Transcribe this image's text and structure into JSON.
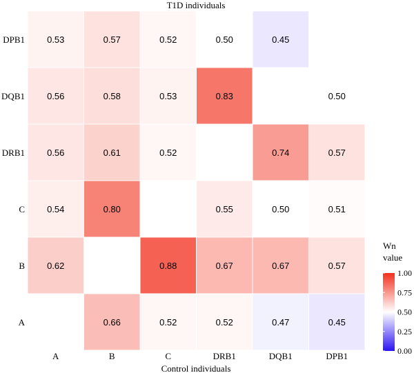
{
  "chart_data": {
    "type": "heatmap",
    "title": "T1D individuals",
    "xlabel": "Control individuals",
    "ylabel": "",
    "x_categories": [
      "A",
      "B",
      "C",
      "DRB1",
      "DQB1",
      "DPB1"
    ],
    "y_categories": [
      "A",
      "B",
      "C",
      "DRB1",
      "DQB1",
      "DPB1"
    ],
    "cells": [
      {
        "x": "A",
        "y": "DPB1",
        "value": 0.53,
        "label": "0.53"
      },
      {
        "x": "B",
        "y": "DPB1",
        "value": 0.57,
        "label": "0.57"
      },
      {
        "x": "C",
        "y": "DPB1",
        "value": 0.52,
        "label": "0.52"
      },
      {
        "x": "DRB1",
        "y": "DPB1",
        "value": 0.5,
        "label": "0.50"
      },
      {
        "x": "DQB1",
        "y": "DPB1",
        "value": 0.45,
        "label": "0.45"
      },
      {
        "x": "A",
        "y": "DQB1",
        "value": 0.56,
        "label": "0.56"
      },
      {
        "x": "B",
        "y": "DQB1",
        "value": 0.58,
        "label": "0.58"
      },
      {
        "x": "C",
        "y": "DQB1",
        "value": 0.53,
        "label": "0.53"
      },
      {
        "x": "DRB1",
        "y": "DQB1",
        "value": 0.83,
        "label": "0.83"
      },
      {
        "x": "DPB1",
        "y": "DQB1",
        "value": 0.5,
        "label": "0.50"
      },
      {
        "x": "A",
        "y": "DRB1",
        "value": 0.56,
        "label": "0.56"
      },
      {
        "x": "B",
        "y": "DRB1",
        "value": 0.61,
        "label": "0.61"
      },
      {
        "x": "C",
        "y": "DRB1",
        "value": 0.52,
        "label": "0.52"
      },
      {
        "x": "DQB1",
        "y": "DRB1",
        "value": 0.74,
        "label": "0.74"
      },
      {
        "x": "DPB1",
        "y": "DRB1",
        "value": 0.57,
        "label": "0.57"
      },
      {
        "x": "A",
        "y": "C",
        "value": 0.54,
        "label": "0.54"
      },
      {
        "x": "B",
        "y": "C",
        "value": 0.8,
        "label": "0.80"
      },
      {
        "x": "DRB1",
        "y": "C",
        "value": 0.55,
        "label": "0.55"
      },
      {
        "x": "DQB1",
        "y": "C",
        "value": 0.5,
        "label": "0.50"
      },
      {
        "x": "DPB1",
        "y": "C",
        "value": 0.51,
        "label": "0.51"
      },
      {
        "x": "A",
        "y": "B",
        "value": 0.62,
        "label": "0.62"
      },
      {
        "x": "C",
        "y": "B",
        "value": 0.88,
        "label": "0.88"
      },
      {
        "x": "DRB1",
        "y": "B",
        "value": 0.67,
        "label": "0.67"
      },
      {
        "x": "DQB1",
        "y": "B",
        "value": 0.67,
        "label": "0.67"
      },
      {
        "x": "DPB1",
        "y": "B",
        "value": 0.57,
        "label": "0.57"
      },
      {
        "x": "B",
        "y": "A",
        "value": 0.66,
        "label": "0.66"
      },
      {
        "x": "C",
        "y": "A",
        "value": 0.52,
        "label": "0.52"
      },
      {
        "x": "DRB1",
        "y": "A",
        "value": 0.52,
        "label": "0.52"
      },
      {
        "x": "DQB1",
        "y": "A",
        "value": 0.47,
        "label": "0.47"
      },
      {
        "x": "DPB1",
        "y": "A",
        "value": 0.45,
        "label": "0.45"
      }
    ],
    "legend": {
      "title_lines": [
        "Wn",
        "value"
      ],
      "ticks": [
        "1.00",
        "0.75",
        "0.50",
        "0.25",
        "0.00"
      ],
      "min": 0.0,
      "max": 1.0,
      "placement": "right"
    },
    "colors": {
      "low": "#2b13f2",
      "mid": "#ffffff",
      "high": "#f2311d",
      "empty": "#ffffff",
      "gridline": "#ffffff"
    },
    "grid": false
  }
}
